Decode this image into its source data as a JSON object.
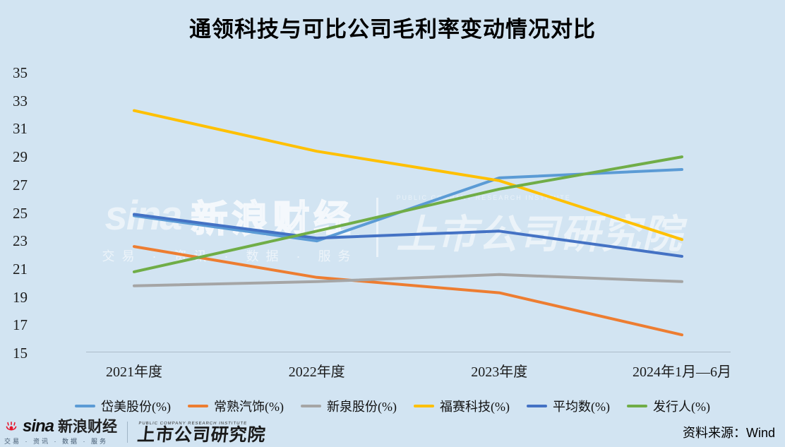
{
  "title": "通领科技与可比公司毛利率变动情况对比",
  "source_note": "资料来源：Wind",
  "watermark": {
    "sina": "sina",
    "brand": "新浪财经",
    "sub": "交易 · 资讯 · 数据 · 服务",
    "caption": "PUBLIC COMPANY RESEARCH INSTITUTE",
    "institute": "上市公司研究院"
  },
  "footer": {
    "sina": "sina",
    "brand": "新浪财经",
    "sub": "交易 · 资讯 · 数据 · 服务",
    "institute_caption": "PUBLIC COMPANY RESEARCH INSTITUTE",
    "institute": "上市公司研究院"
  },
  "chart_data": {
    "type": "line",
    "title": "通领科技与可比公司毛利率变动情况对比",
    "categories": [
      "2021年度",
      "2022年度",
      "2023年度",
      "2024年1月—6月"
    ],
    "series": [
      {
        "name": "岱美股份(%)",
        "color": "#5B9BD5",
        "values": [
          24.8,
          23.0,
          27.5,
          28.1
        ]
      },
      {
        "name": "常熟汽饰(%)",
        "color": "#ED7D31",
        "values": [
          22.6,
          20.4,
          19.3,
          16.3
        ]
      },
      {
        "name": "新泉股份(%)",
        "color": "#A5A5A5",
        "values": [
          19.8,
          20.1,
          20.6,
          20.1
        ]
      },
      {
        "name": "福赛科技(%)",
        "color": "#FFC000",
        "values": [
          32.3,
          29.4,
          27.3,
          23.1
        ]
      },
      {
        "name": "平均数(%)",
        "color": "#4472C4",
        "values": [
          24.9,
          23.2,
          23.7,
          21.9
        ]
      },
      {
        "name": "发行人(%)",
        "color": "#70AD47",
        "values": [
          20.8,
          23.7,
          26.7,
          29.0
        ]
      }
    ],
    "ylim": [
      15,
      35
    ],
    "ytick_step": 2,
    "xlabel": "",
    "ylabel": "",
    "grid": false,
    "legend_position": "bottom",
    "background_color": "#d2e4f2"
  }
}
